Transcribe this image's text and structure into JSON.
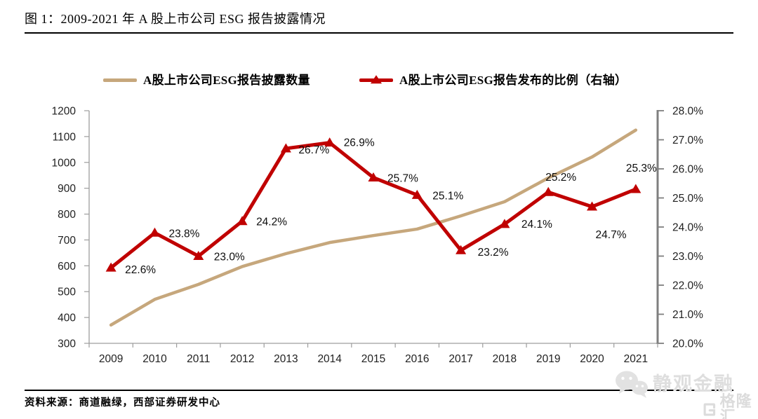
{
  "figure": {
    "title": "图 1：2009-2021 年 A 股上市公司 ESG 报告披露情况",
    "source": "资料来源：商道融绿，西部证券研发中心"
  },
  "watermark": {
    "wechat_icon": "wechat-icon",
    "wechat_name": "静观金融",
    "platform_icon": "gelonghui-icon",
    "platform_name": "格隆汇"
  },
  "chart_data": {
    "type": "line",
    "title": "",
    "grid": false,
    "legend_position": "top",
    "categories": [
      "2009",
      "2010",
      "2011",
      "2012",
      "2013",
      "2014",
      "2015",
      "2016",
      "2017",
      "2018",
      "2019",
      "2020",
      "2021"
    ],
    "left_axis": {
      "min": 300,
      "max": 1200,
      "step": 100,
      "tick_labels": [
        "1200",
        "1100",
        "1000",
        "900",
        "800",
        "700",
        "600",
        "500",
        "400",
        "300"
      ]
    },
    "right_axis": {
      "min": 20,
      "max": 28,
      "step": 1,
      "tick_labels": [
        "28.0%",
        "27.0%",
        "26.0%",
        "25.0%",
        "24.0%",
        "23.0%",
        "22.0%",
        "21.0%",
        "20.0%"
      ]
    },
    "series": [
      {
        "name": "A股上市公司ESG报告披露数量",
        "axis": "left",
        "color": "#C6A77C",
        "marker": "none",
        "values": [
          371,
          470,
          528,
          597,
          647,
          690,
          717,
          742,
          793,
          848,
          940,
          1021,
          1125
        ]
      },
      {
        "name": "A股上市公司ESG报告发布的比例（右轴）",
        "axis": "right",
        "color": "#C00000",
        "marker": "triangle",
        "values": [
          22.6,
          23.8,
          23.0,
          24.2,
          26.7,
          26.9,
          25.7,
          25.1,
          23.2,
          24.1,
          25.2,
          24.7,
          25.3
        ],
        "data_labels": [
          "22.6%",
          "23.8%",
          "23.0%",
          "24.2%",
          "26.7%",
          "26.9%",
          "25.7%",
          "25.1%",
          "23.2%",
          "24.1%",
          "25.2%",
          "24.7%",
          "25.3%"
        ],
        "label_offsets": [
          [
            20,
            8
          ],
          [
            20,
            6
          ],
          [
            22,
            6
          ],
          [
            20,
            6
          ],
          [
            18,
            7
          ],
          [
            20,
            5
          ],
          [
            20,
            6
          ],
          [
            22,
            6
          ],
          [
            24,
            8
          ],
          [
            24,
            5
          ],
          [
            -4,
            -16
          ],
          [
            5,
            45
          ],
          [
            -14,
            -25
          ]
        ]
      }
    ]
  }
}
